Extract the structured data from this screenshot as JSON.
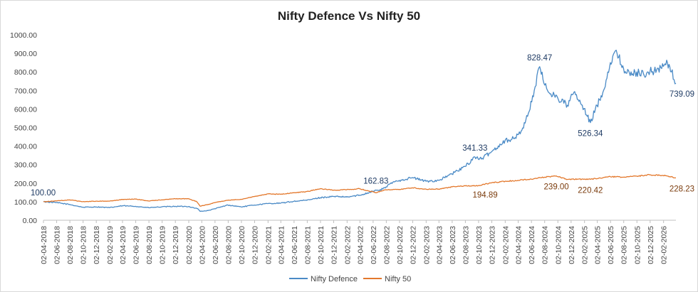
{
  "chart_data": {
    "type": "line",
    "title": "Nifty Defence Vs Nifty 50",
    "ylim": [
      0,
      1000
    ],
    "y_ticks": [
      "0.00",
      "100.00",
      "200.00",
      "300.00",
      "400.00",
      "500.00",
      "600.00",
      "700.00",
      "800.00",
      "900.00",
      "1000.00"
    ],
    "x_start": "2018-04-02",
    "x_end": "2026-03-31",
    "x_ticks": [
      "02-04-2018",
      "02-06-2018",
      "02-08-2018",
      "02-10-2018",
      "02-12-2018",
      "02-02-2019",
      "02-04-2019",
      "02-06-2019",
      "02-08-2019",
      "02-10-2019",
      "02-12-2019",
      "02-02-2020",
      "02-04-2020",
      "02-06-2020",
      "02-08-2020",
      "02-10-2020",
      "02-12-2020",
      "02-02-2021",
      "02-04-2021",
      "02-06-2021",
      "02-08-2021",
      "02-10-2021",
      "02-12-2021",
      "02-02-2022",
      "02-04-2022",
      "02-06-2022",
      "02-08-2022",
      "02-10-2022",
      "02-12-2022",
      "02-02-2023",
      "02-04-2023",
      "02-06-2023",
      "02-08-2023",
      "02-10-2023",
      "02-12-2023",
      "02-02-2024",
      "02-04-2024",
      "02-06-2024",
      "02-08-2024",
      "02-10-2024",
      "02-12-2024",
      "02-02-2025",
      "02-04-2025",
      "02-06-2025",
      "02-08-2025",
      "02-10-2025",
      "02-12-2025",
      "02-02-2026"
    ],
    "grid": false,
    "legend": "bottom",
    "series": [
      {
        "name": "Nifty Defence",
        "color": "#4a8ac6",
        "points": [
          [
            "2018-04-02",
            100
          ],
          [
            "2018-06-01",
            95
          ],
          [
            "2018-08-01",
            85
          ],
          [
            "2018-10-01",
            70
          ],
          [
            "2018-12-01",
            72
          ],
          [
            "2019-02-01",
            68
          ],
          [
            "2019-04-01",
            78
          ],
          [
            "2019-06-01",
            75
          ],
          [
            "2019-08-01",
            68
          ],
          [
            "2019-10-01",
            72
          ],
          [
            "2019-12-01",
            75
          ],
          [
            "2020-02-01",
            74
          ],
          [
            "2020-03-15",
            62
          ],
          [
            "2020-03-25",
            48
          ],
          [
            "2020-05-01",
            52
          ],
          [
            "2020-06-01",
            62
          ],
          [
            "2020-08-01",
            82
          ],
          [
            "2020-10-01",
            72
          ],
          [
            "2020-12-01",
            82
          ],
          [
            "2021-02-01",
            90
          ],
          [
            "2021-04-01",
            92
          ],
          [
            "2021-06-01",
            102
          ],
          [
            "2021-08-01",
            108
          ],
          [
            "2021-10-01",
            122
          ],
          [
            "2021-12-01",
            128
          ],
          [
            "2022-02-01",
            125
          ],
          [
            "2022-04-01",
            135
          ],
          [
            "2022-05-15",
            150
          ],
          [
            "2022-06-15",
            162.83
          ],
          [
            "2022-07-01",
            160
          ],
          [
            "2022-08-01",
            180
          ],
          [
            "2022-09-01",
            205
          ],
          [
            "2022-10-01",
            215
          ],
          [
            "2022-12-01",
            230
          ],
          [
            "2023-02-01",
            210
          ],
          [
            "2023-04-01",
            215
          ],
          [
            "2023-06-01",
            250
          ],
          [
            "2023-08-01",
            290
          ],
          [
            "2023-09-15",
            341.33
          ],
          [
            "2023-10-15",
            330
          ],
          [
            "2023-12-01",
            370
          ],
          [
            "2024-02-01",
            430
          ],
          [
            "2024-03-15",
            440
          ],
          [
            "2024-04-15",
            480
          ],
          [
            "2024-05-15",
            560
          ],
          [
            "2024-06-15",
            700
          ],
          [
            "2024-07-10",
            828.47
          ],
          [
            "2024-07-25",
            760
          ],
          [
            "2024-08-15",
            700
          ],
          [
            "2024-10-01",
            660
          ],
          [
            "2024-11-15",
            620
          ],
          [
            "2024-12-15",
            690
          ],
          [
            "2025-01-15",
            630
          ],
          [
            "2025-02-15",
            560
          ],
          [
            "2025-03-01",
            526.34
          ],
          [
            "2025-04-01",
            620
          ],
          [
            "2025-05-01",
            700
          ],
          [
            "2025-06-01",
            850
          ],
          [
            "2025-06-20",
            905
          ],
          [
            "2025-07-10",
            880
          ],
          [
            "2025-08-01",
            820
          ],
          [
            "2025-09-01",
            780
          ],
          [
            "2025-10-01",
            800
          ],
          [
            "2025-11-01",
            790
          ],
          [
            "2025-12-01",
            800
          ],
          [
            "2026-01-01",
            810
          ],
          [
            "2026-02-01",
            830
          ],
          [
            "2026-02-20",
            850
          ],
          [
            "2026-03-10",
            800
          ],
          [
            "2026-03-31",
            739.09
          ]
        ]
      },
      {
        "name": "Nifty 50",
        "color": "#e3782c",
        "points": [
          [
            "2018-04-02",
            100
          ],
          [
            "2018-06-01",
            104
          ],
          [
            "2018-08-01",
            110
          ],
          [
            "2018-10-01",
            100
          ],
          [
            "2018-12-01",
            103
          ],
          [
            "2019-02-01",
            103
          ],
          [
            "2019-04-01",
            112
          ],
          [
            "2019-06-01",
            114
          ],
          [
            "2019-08-01",
            104
          ],
          [
            "2019-10-01",
            110
          ],
          [
            "2019-12-01",
            116
          ],
          [
            "2020-02-01",
            116
          ],
          [
            "2020-03-10",
            100
          ],
          [
            "2020-03-25",
            76
          ],
          [
            "2020-05-01",
            85
          ],
          [
            "2020-06-01",
            95
          ],
          [
            "2020-08-01",
            108
          ],
          [
            "2020-10-01",
            113
          ],
          [
            "2020-12-01",
            128
          ],
          [
            "2021-02-01",
            142
          ],
          [
            "2021-04-01",
            140
          ],
          [
            "2021-06-01",
            148
          ],
          [
            "2021-08-01",
            155
          ],
          [
            "2021-10-01",
            170
          ],
          [
            "2021-12-01",
            162
          ],
          [
            "2022-02-01",
            165
          ],
          [
            "2022-04-01",
            170
          ],
          [
            "2022-06-15",
            149
          ],
          [
            "2022-08-01",
            164
          ],
          [
            "2022-10-01",
            166
          ],
          [
            "2022-12-01",
            175
          ],
          [
            "2023-02-01",
            168
          ],
          [
            "2023-04-01",
            168
          ],
          [
            "2023-06-01",
            180
          ],
          [
            "2023-08-01",
            185
          ],
          [
            "2023-10-01",
            187
          ],
          [
            "2023-11-01",
            194.89
          ],
          [
            "2023-12-01",
            202
          ],
          [
            "2024-02-01",
            210
          ],
          [
            "2024-04-01",
            215
          ],
          [
            "2024-06-01",
            222
          ],
          [
            "2024-07-15",
            230
          ],
          [
            "2024-09-25",
            239
          ],
          [
            "2024-11-15",
            220
          ],
          [
            "2025-01-01",
            222
          ],
          [
            "2025-03-01",
            220.42
          ],
          [
            "2025-04-15",
            228
          ],
          [
            "2025-06-01",
            235
          ],
          [
            "2025-08-01",
            232
          ],
          [
            "2025-10-01",
            238
          ],
          [
            "2025-12-01",
            245
          ],
          [
            "2026-01-15",
            242
          ],
          [
            "2026-02-15",
            240
          ],
          [
            "2026-03-31",
            228.23
          ]
        ]
      }
    ],
    "annotations": [
      {
        "text": "100.00",
        "series": 0,
        "date": "2018-04-02",
        "value": 100,
        "pos": "above"
      },
      {
        "text": "162.83",
        "series": 0,
        "date": "2022-06-15",
        "value": 162.83,
        "pos": "above"
      },
      {
        "text": "341.33",
        "series": 0,
        "date": "2023-09-15",
        "value": 341.33,
        "pos": "above"
      },
      {
        "text": "828.47",
        "series": 0,
        "date": "2024-07-10",
        "value": 828.47,
        "pos": "above"
      },
      {
        "text": "526.34",
        "series": 0,
        "date": "2025-03-01",
        "value": 526.34,
        "pos": "below"
      },
      {
        "text": "739.09",
        "series": 0,
        "date": "2026-03-31",
        "value": 739.09,
        "pos": "below"
      },
      {
        "text": "194.89",
        "series": 1,
        "date": "2023-11-01",
        "value": 194.89,
        "pos": "below"
      },
      {
        "text": "239.00",
        "series": 1,
        "date": "2024-09-25",
        "value": 239,
        "pos": "below"
      },
      {
        "text": "220.42",
        "series": 1,
        "date": "2025-03-01",
        "value": 220.42,
        "pos": "below"
      },
      {
        "text": "228.23",
        "series": 1,
        "date": "2026-03-31",
        "value": 228.23,
        "pos": "below"
      }
    ]
  }
}
